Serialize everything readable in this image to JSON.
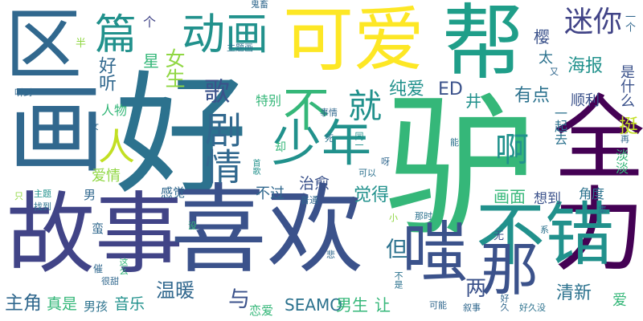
{
  "palette": {
    "background": "#ffffff",
    "dark_purple": "#440154",
    "indigo": "#414487",
    "navy_blue": "#3b528b",
    "slate_blue": "#31688e",
    "teal_blue": "#2c728e",
    "teal": "#21918c",
    "sea_green": "#1f9e89",
    "green": "#35b779",
    "lime": "#90d743",
    "yellow_green": "#c2df23",
    "yellow": "#fde725"
  },
  "words": [
    {
      "text": "好",
      "color": "#2c728e",
      "orient": "h"
    },
    {
      "text": "驴",
      "color": "#35b779",
      "orient": "h"
    },
    {
      "text": "故事",
      "color": "#414487",
      "orient": "h"
    },
    {
      "text": "喜欢",
      "color": "#3b528b",
      "orient": "h"
    },
    {
      "text": "画",
      "color": "#31688e",
      "orient": "h"
    },
    {
      "text": "区",
      "color": "#31688e",
      "orient": "h"
    },
    {
      "text": "全力",
      "color": "#440154",
      "orient": "v"
    },
    {
      "text": "可爱",
      "color": "#fde725",
      "orient": "h"
    },
    {
      "text": "帮",
      "color": "#1f9e89",
      "orient": "h"
    },
    {
      "text": "不错",
      "color": "#21918c",
      "orient": "h"
    },
    {
      "text": "动画",
      "color": "#21918c",
      "orient": "h"
    },
    {
      "text": "少年",
      "color": "#21918c",
      "orient": "h"
    },
    {
      "text": "嗤",
      "color": "#3b528b",
      "orient": "h"
    },
    {
      "text": "那",
      "color": "#3b528b",
      "orient": "h"
    },
    {
      "text": "篇",
      "color": "#21918c",
      "orient": "h"
    },
    {
      "text": "就",
      "color": "#21918c",
      "orient": "h"
    },
    {
      "text": "迷你",
      "color": "#414487",
      "orient": "h"
    },
    {
      "text": "人",
      "color": "#c2df23",
      "orient": "h"
    },
    {
      "text": "不",
      "color": "#35b779",
      "orient": "h"
    },
    {
      "text": "剧情",
      "color": "#31688e",
      "orient": "v"
    },
    {
      "text": "歌",
      "color": "#3b528b",
      "orient": "h"
    },
    {
      "text": "啊",
      "color": "#21918c",
      "orient": "h"
    },
    {
      "text": "好听",
      "color": "#31688e",
      "orient": "v"
    },
    {
      "text": "女生",
      "color": "#90d743",
      "orient": "v"
    },
    {
      "text": "纯爱",
      "color": "#21918c",
      "orient": "h"
    },
    {
      "text": "ED",
      "color": "#3b528b",
      "orient": "h"
    },
    {
      "text": "有点",
      "color": "#2c728e",
      "orient": "h"
    },
    {
      "text": "海报",
      "color": "#21918c",
      "orient": "h"
    },
    {
      "text": "樱",
      "color": "#3b528b",
      "orient": "h"
    },
    {
      "text": "太",
      "color": "#2c728e",
      "orient": "h"
    },
    {
      "text": "星",
      "color": "#35b779",
      "orient": "h"
    },
    {
      "text": "井",
      "color": "#21918c",
      "orient": "h"
    },
    {
      "text": "特别",
      "color": "#35b779",
      "orient": "h"
    },
    {
      "text": "人物",
      "color": "#35b779",
      "orient": "h"
    },
    {
      "text": "爱情",
      "color": "#90d743",
      "orient": "h"
    },
    {
      "text": "不过",
      "color": "#31688e",
      "orient": "h"
    },
    {
      "text": "治愈",
      "color": "#3b528b",
      "orient": "h"
    },
    {
      "text": "觉得",
      "color": "#21918c",
      "orient": "h"
    },
    {
      "text": "画面",
      "color": "#35b779",
      "orient": "h"
    },
    {
      "text": "想到",
      "color": "#3b528b",
      "orient": "h"
    },
    {
      "text": "角度",
      "color": "#2c728e",
      "orient": "h"
    },
    {
      "text": "顺利",
      "color": "#3b528b",
      "orient": "h"
    },
    {
      "text": "挺",
      "color": "#c2df23",
      "orient": "h"
    },
    {
      "text": "是什么",
      "color": "#3b528b",
      "orient": "v"
    },
    {
      "text": "一起去",
      "color": "#2c728e",
      "orient": "v"
    },
    {
      "text": "淡淡",
      "color": "#35b779",
      "orient": "v"
    },
    {
      "text": "男",
      "color": "#31688e",
      "orient": "h"
    },
    {
      "text": "感觉",
      "color": "#31688e",
      "orient": "h"
    },
    {
      "text": "但",
      "color": "#2c728e",
      "orient": "h"
    },
    {
      "text": "两",
      "color": "#3b528b",
      "orient": "h"
    },
    {
      "text": "温暖",
      "color": "#31688e",
      "orient": "h"
    },
    {
      "text": "与",
      "color": "#3b528b",
      "orient": "h"
    },
    {
      "text": "主角",
      "color": "#31688e",
      "orient": "h"
    },
    {
      "text": "真是",
      "color": "#35b779",
      "orient": "h"
    },
    {
      "text": "男孩",
      "color": "#2c728e",
      "orient": "h"
    },
    {
      "text": "音乐",
      "color": "#21918c",
      "orient": "h"
    },
    {
      "text": "恋爱",
      "color": "#35b779",
      "orient": "h"
    },
    {
      "text": "SEAMO",
      "color": "#2c728e",
      "orient": "h"
    },
    {
      "text": "男生",
      "color": "#35b779",
      "orient": "h"
    },
    {
      "text": "让",
      "color": "#35b779",
      "orient": "h"
    },
    {
      "text": "清新",
      "color": "#2c728e",
      "orient": "h"
    },
    {
      "text": "爱",
      "color": "#35b779",
      "orient": "h"
    },
    {
      "text": "个",
      "color": "#414487",
      "orient": "h"
    },
    {
      "text": "半",
      "color": "#90d743",
      "orient": "h"
    },
    {
      "text": "鬼畜",
      "color": "#31688e",
      "orient": "h"
    },
    {
      "text": "主题画",
      "color": "#2c728e",
      "orient": "h"
    },
    {
      "text": "听到",
      "color": "#31688e",
      "orient": "h"
    },
    {
      "text": "女",
      "color": "#31688e",
      "orient": "h"
    },
    {
      "text": "事情",
      "color": "#31688e",
      "orient": "h"
    },
    {
      "text": "死",
      "color": "#2c728e",
      "orient": "h"
    },
    {
      "text": "却",
      "color": "#35b779",
      "orient": "h"
    },
    {
      "text": "同一",
      "color": "#21918c",
      "orient": "v"
    },
    {
      "text": "可以",
      "color": "#2c728e",
      "orient": "h"
    },
    {
      "text": "呀",
      "color": "#31688e",
      "orient": "h"
    },
    {
      "text": "普通",
      "color": "#31688e",
      "orient": "h"
    },
    {
      "text": "首歌",
      "color": "#21918c",
      "orient": "v"
    },
    {
      "text": "只",
      "color": "#90d743",
      "orient": "h"
    },
    {
      "text": "主题",
      "color": "#21918c",
      "orient": "h"
    },
    {
      "text": "找到",
      "color": "#2c728e",
      "orient": "h"
    },
    {
      "text": "没",
      "color": "#35b779",
      "orient": "h"
    },
    {
      "text": "小",
      "color": "#90d743",
      "orient": "h"
    },
    {
      "text": "那时",
      "color": "#2c728e",
      "orient": "h"
    },
    {
      "text": "无",
      "color": "#3b528b",
      "orient": "h"
    },
    {
      "text": "系",
      "color": "#2c728e",
      "orient": "h"
    },
    {
      "text": "蛮",
      "color": "#31688e",
      "orient": "h"
    },
    {
      "text": "悲",
      "color": "#31688e",
      "orient": "h"
    },
    {
      "text": "催",
      "color": "#31688e",
      "orient": "h"
    },
    {
      "text": "很甜",
      "color": "#31688e",
      "orient": "h"
    },
    {
      "text": "这么",
      "color": "#35b779",
      "orient": "v"
    },
    {
      "text": "不是",
      "color": "#2c728e",
      "orient": "v"
    },
    {
      "text": "可能",
      "color": "#31688e",
      "orient": "h"
    },
    {
      "text": "叙事",
      "color": "#31688e",
      "orient": "h"
    },
    {
      "text": "好久",
      "color": "#31688e",
      "orient": "v"
    },
    {
      "text": "好久没",
      "color": "#2c728e",
      "orient": "h"
    },
    {
      "text": "集",
      "color": "#2c728e",
      "orient": "h"
    },
    {
      "text": "再",
      "color": "#31688e",
      "orient": "h"
    },
    {
      "text": "能",
      "color": "#2c728e",
      "orient": "h"
    },
    {
      "text": "又",
      "color": "#31688e",
      "orient": "h"
    },
    {
      "text": "一个",
      "color": "#31688e",
      "orient": "v"
    }
  ]
}
